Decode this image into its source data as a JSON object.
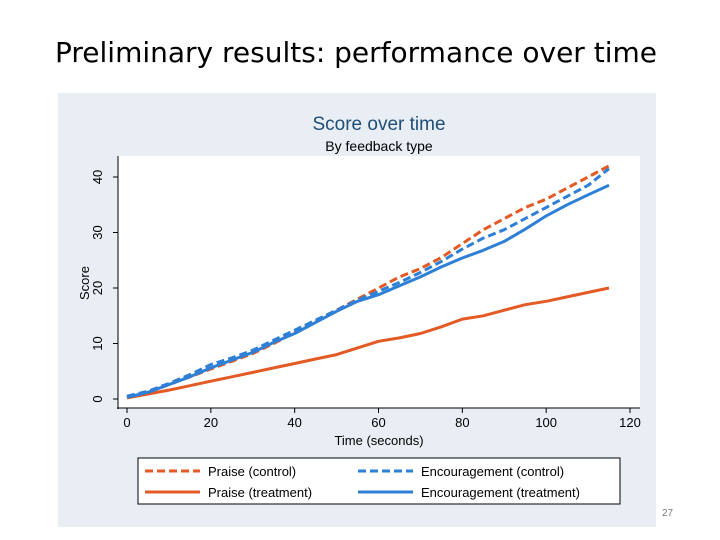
{
  "slide": {
    "title": "Preliminary results: performance over time",
    "page_number": "27"
  },
  "colors": {
    "panel_bg": "#e8eef3",
    "plot_bg": "#ffffff",
    "title_color": "#1f4e79",
    "praise": "#e35a24",
    "encouragement": "#2e7fd6"
  },
  "chart_data": {
    "type": "line",
    "title": "Score over time",
    "subtitle": "By feedback type",
    "xlabel": "Time (seconds)",
    "ylabel": "Score",
    "xlim": [
      0,
      120
    ],
    "ylim": [
      0,
      40
    ],
    "xticks": [
      0,
      20,
      40,
      60,
      80,
      100,
      120
    ],
    "yticks": [
      0,
      10,
      20,
      30,
      40
    ],
    "grid": false,
    "legend_position": "bottom",
    "series": [
      {
        "name": "Praise (control)",
        "color": "#e35a24",
        "dashed": true,
        "x": [
          0,
          5,
          10,
          15,
          20,
          25,
          30,
          35,
          40,
          45,
          50,
          55,
          60,
          65,
          70,
          75,
          80,
          85,
          90,
          95,
          100,
          105,
          110,
          115
        ],
        "y": [
          0.3,
          1.2,
          2.6,
          4.0,
          5.4,
          6.8,
          8.2,
          10.0,
          12.0,
          14.0,
          16.0,
          18.0,
          20.0,
          22.0,
          23.5,
          25.5,
          28.0,
          30.5,
          32.5,
          34.5,
          36.0,
          38.0,
          40.0,
          42.0
        ]
      },
      {
        "name": "Encouragement (control)",
        "color": "#2e7fd6",
        "dashed": true,
        "x": [
          0,
          5,
          10,
          15,
          20,
          25,
          30,
          35,
          40,
          45,
          50,
          55,
          60,
          65,
          70,
          75,
          80,
          85,
          90,
          95,
          100,
          105,
          110,
          115
        ],
        "y": [
          0.5,
          1.4,
          2.8,
          4.4,
          6.2,
          7.4,
          8.8,
          10.6,
          12.4,
          14.2,
          16.0,
          17.8,
          19.4,
          21.0,
          22.8,
          24.8,
          27.0,
          29.0,
          30.5,
          32.5,
          34.5,
          36.5,
          38.5,
          41.5
        ]
      },
      {
        "name": "Praise (treatment)",
        "color": "#e35a24",
        "dashed": false,
        "x": [
          0,
          5,
          10,
          15,
          20,
          25,
          30,
          35,
          40,
          45,
          50,
          55,
          60,
          65,
          70,
          75,
          80,
          85,
          90,
          95,
          100,
          105,
          110,
          115
        ],
        "y": [
          0.2,
          0.9,
          1.6,
          2.4,
          3.2,
          4.0,
          4.8,
          5.6,
          6.4,
          7.2,
          8.0,
          9.2,
          10.4,
          11.0,
          11.8,
          13.0,
          14.4,
          15.0,
          16.0,
          17.0,
          17.6,
          18.4,
          19.2,
          20.0
        ]
      },
      {
        "name": "Encouragement (treatment)",
        "color": "#2e7fd6",
        "dashed": false,
        "x": [
          0,
          5,
          10,
          15,
          20,
          25,
          30,
          35,
          40,
          45,
          50,
          55,
          60,
          65,
          70,
          75,
          80,
          85,
          90,
          95,
          100,
          105,
          110,
          115
        ],
        "y": [
          0.3,
          1.2,
          2.6,
          4.0,
          5.6,
          7.0,
          8.4,
          10.2,
          11.8,
          13.8,
          15.8,
          17.6,
          18.8,
          20.4,
          22.0,
          23.8,
          25.4,
          26.8,
          28.4,
          30.6,
          33.0,
          35.0,
          36.8,
          38.5
        ]
      }
    ],
    "legend_order": [
      0,
      1,
      2,
      3
    ]
  }
}
